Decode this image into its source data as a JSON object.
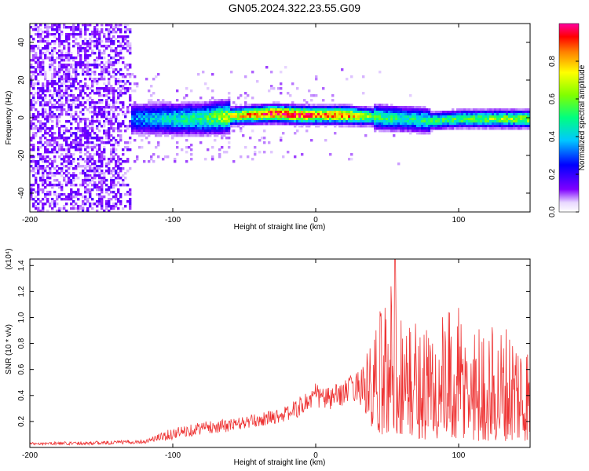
{
  "title": "GN05.2024.322.23.55.G09",
  "colorbar": {
    "label": "Normalized spectral amplitude",
    "range": [
      0.0,
      1.0
    ],
    "tick_labels": [
      "0.0",
      "0.2",
      "0.4",
      "0.6",
      "0.8"
    ],
    "tick_values": [
      0.0,
      0.2,
      0.4,
      0.6,
      0.8
    ],
    "colormap": [
      "#ffffff",
      "#7f00ff",
      "#0000ff",
      "#00c8ff",
      "#00ff80",
      "#80ff00",
      "#ffff00",
      "#ff8000",
      "#ff0000",
      "#ff00a0"
    ]
  },
  "chart_data": [
    {
      "type": "heatmap",
      "xlabel": "Height of straight line (km)",
      "ylabel": "Frequency (Hz)",
      "xlim": [
        -200,
        150
      ],
      "ylim": [
        -50,
        50
      ],
      "xticks": [
        -200,
        -100,
        0,
        100
      ],
      "xtick_labels": [
        "-200",
        "-100",
        "0",
        "100"
      ],
      "yticks": [
        -40,
        -20,
        0,
        20,
        40
      ],
      "ytick_labels": [
        "-40",
        "-20",
        "0",
        "20",
        "40"
      ],
      "ridge": {
        "description_points_x": [
          -130,
          -110,
          -80,
          -50,
          -30,
          -10,
          0,
          20,
          40,
          60,
          80,
          100,
          120,
          150
        ],
        "frequency": [
          0,
          0,
          0,
          2,
          3,
          2,
          2,
          2,
          1,
          0,
          -1,
          0,
          0,
          0
        ],
        "peak_amplitude": [
          0.35,
          0.45,
          0.55,
          0.85,
          1.0,
          1.0,
          0.9,
          0.95,
          0.6,
          0.5,
          0.55,
          0.6,
          0.65,
          0.7
        ]
      },
      "noise_region_x": [
        -200,
        -130
      ]
    },
    {
      "type": "line",
      "xlabel": "Height of straight line (km)",
      "ylabel": "SNR (10 * v/v)",
      "y_scale_label": "(x10⁴)",
      "color": "#ee3333",
      "xlim": [
        -200,
        150
      ],
      "ylim": [
        0,
        1.45
      ],
      "xticks": [
        -200,
        -100,
        0,
        100
      ],
      "xtick_labels": [
        "-200",
        "-100",
        "0",
        "100"
      ],
      "yticks": [
        0.2,
        0.4,
        0.6,
        0.8,
        1.0,
        1.2,
        1.4
      ],
      "ytick_labels": [
        "0.2",
        "0.4",
        "0.6",
        "0.8",
        "1.0",
        "1.2",
        "1.4"
      ],
      "envelope": {
        "x": [
          -200,
          -150,
          -120,
          -100,
          -80,
          -60,
          -40,
          -20,
          -10,
          0,
          10,
          20,
          30,
          40,
          55,
          60,
          80,
          100,
          120,
          140,
          150
        ],
        "baseline": [
          0.02,
          0.02,
          0.03,
          0.06,
          0.1,
          0.12,
          0.16,
          0.2,
          0.24,
          0.3,
          0.28,
          0.33,
          0.36,
          0.1,
          0.1,
          0.1,
          0.05,
          0.05,
          0.05,
          0.05,
          0.05
        ],
        "top": [
          0.04,
          0.05,
          0.06,
          0.15,
          0.2,
          0.22,
          0.26,
          0.32,
          0.4,
          0.5,
          0.46,
          0.52,
          0.6,
          0.85,
          1.45,
          1.05,
          1.0,
          1.08,
          0.95,
          1.0,
          0.85
        ]
      }
    }
  ]
}
